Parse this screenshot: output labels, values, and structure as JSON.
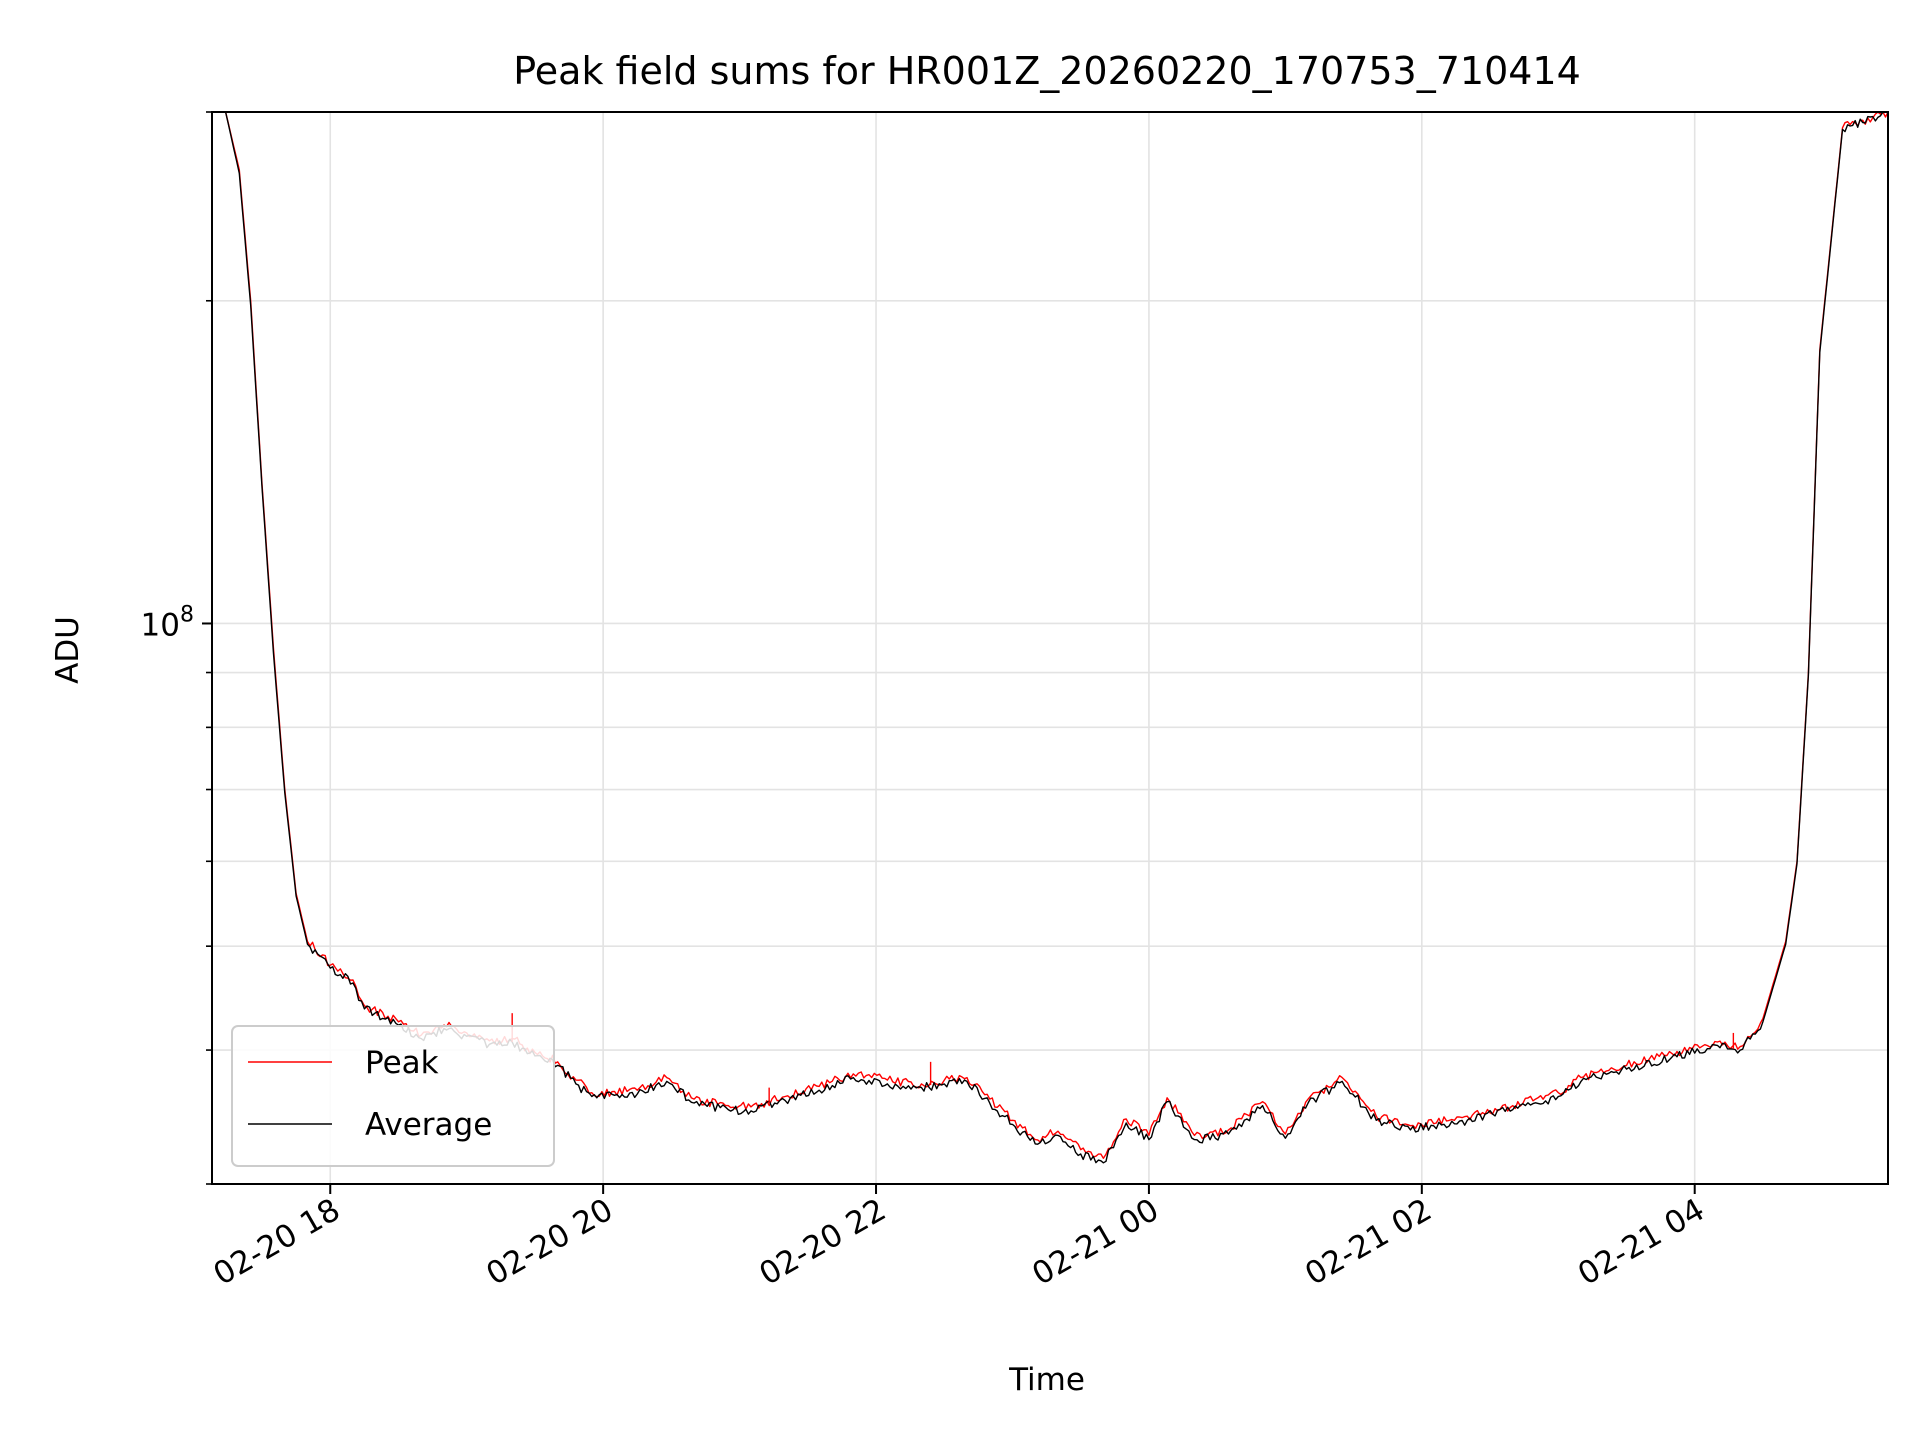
{
  "chart_data": {
    "type": "line",
    "title": "Peak field sums for HR001Z_20260220_170753_710414",
    "xlabel": "Time",
    "ylabel": "ADU",
    "x_scale": "time",
    "y_scale": "log",
    "xlim": [
      "2026-02-20 17:08",
      "2026-02-21 05:25"
    ],
    "ylim": [
      30000000,
      300000000
    ],
    "x_ticks": [
      {
        "value": "2026-02-20 18:00",
        "label": "02-20 18"
      },
      {
        "value": "2026-02-20 20:00",
        "label": "02-20 20"
      },
      {
        "value": "2026-02-20 22:00",
        "label": "02-20 22"
      },
      {
        "value": "2026-02-21 00:00",
        "label": "02-21 00"
      },
      {
        "value": "2026-02-21 02:00",
        "label": "02-21 02"
      },
      {
        "value": "2026-02-21 04:00",
        "label": "02-21 04"
      }
    ],
    "y_major_ticks": [
      {
        "value": 100000000,
        "label_base": "10",
        "label_exp": "8"
      }
    ],
    "y_minor_ticks": [
      30000000,
      40000000,
      50000000,
      60000000,
      70000000,
      80000000,
      90000000,
      200000000,
      300000000
    ],
    "grid": true,
    "legend_position": "lower-left",
    "series": [
      {
        "name": "Peak",
        "color": "#ff0000",
        "points": [
          [
            "2026-02-20 17:14",
            300000000
          ],
          [
            "2026-02-20 17:20",
            265000000
          ],
          [
            "2026-02-20 17:25",
            200000000
          ],
          [
            "2026-02-20 17:30",
            135000000
          ],
          [
            "2026-02-20 17:35",
            95000000
          ],
          [
            "2026-02-20 17:40",
            70000000
          ],
          [
            "2026-02-20 17:45",
            56000000
          ],
          [
            "2026-02-20 17:50",
            50500000
          ],
          [
            "2026-02-20 18:00",
            48000000
          ],
          [
            "2026-02-20 18:10",
            46500000
          ],
          [
            "2026-02-20 18:15",
            44000000
          ],
          [
            "2026-02-20 18:30",
            42500000
          ],
          [
            "2026-02-20 18:40",
            41300000
          ],
          [
            "2026-02-20 18:50",
            42200000
          ],
          [
            "2026-02-20 19:00",
            41500000
          ],
          [
            "2026-02-20 19:10",
            40800000
          ],
          [
            "2026-02-20 19:20",
            41000000
          ],
          [
            "2026-02-20 19:30",
            39800000
          ],
          [
            "2026-02-20 19:40",
            39000000
          ],
          [
            "2026-02-20 19:48",
            37500000
          ],
          [
            "2026-02-20 19:55",
            36500000
          ],
          [
            "2026-02-20 20:05",
            36600000
          ],
          [
            "2026-02-20 20:15",
            36700000
          ],
          [
            "2026-02-20 20:28",
            37700000
          ],
          [
            "2026-02-20 20:40",
            36000000
          ],
          [
            "2026-02-20 20:55",
            35500000
          ],
          [
            "2026-02-20 21:05",
            35400000
          ],
          [
            "2026-02-20 21:20",
            36200000
          ],
          [
            "2026-02-20 21:35",
            37000000
          ],
          [
            "2026-02-20 21:50",
            38000000
          ],
          [
            "2026-02-20 22:05",
            37500000
          ],
          [
            "2026-02-20 22:20",
            37200000
          ],
          [
            "2026-02-20 22:30",
            37500000
          ],
          [
            "2026-02-20 22:40",
            37700000
          ],
          [
            "2026-02-20 22:50",
            36000000
          ],
          [
            "2026-02-20 23:00",
            34400000
          ],
          [
            "2026-02-20 23:10",
            33000000
          ],
          [
            "2026-02-20 23:20",
            33600000
          ],
          [
            "2026-02-20 23:30",
            32300000
          ],
          [
            "2026-02-20 23:40",
            31700000
          ],
          [
            "2026-02-20 23:50",
            34500000
          ],
          [
            "2026-02-21 00:00",
            33300000
          ],
          [
            "2026-02-21 00:08",
            36100000
          ],
          [
            "2026-02-21 00:20",
            33300000
          ],
          [
            "2026-02-21 00:35",
            33700000
          ],
          [
            "2026-02-21 00:50",
            35800000
          ],
          [
            "2026-02-21 01:00",
            33400000
          ],
          [
            "2026-02-21 01:10",
            36000000
          ],
          [
            "2026-02-21 01:25",
            37700000
          ],
          [
            "2026-02-21 01:40",
            34700000
          ],
          [
            "2026-02-21 01:55",
            34000000
          ],
          [
            "2026-02-21 02:20",
            34700000
          ],
          [
            "2026-02-21 02:40",
            35500000
          ],
          [
            "2026-02-21 03:00",
            36500000
          ],
          [
            "2026-02-21 03:10",
            37700000
          ],
          [
            "2026-02-21 03:30",
            38700000
          ],
          [
            "2026-02-21 03:50",
            39700000
          ],
          [
            "2026-02-21 04:10",
            40700000
          ],
          [
            "2026-02-21 04:20",
            40300000
          ],
          [
            "2026-02-21 04:30",
            42800000
          ],
          [
            "2026-02-21 04:40",
            50500000
          ],
          [
            "2026-02-21 04:45",
            60000000
          ],
          [
            "2026-02-21 04:50",
            90000000
          ],
          [
            "2026-02-21 04:55",
            180000000
          ],
          [
            "2026-02-21 05:05",
            290000000
          ],
          [
            "2026-02-21 05:25",
            300000000
          ]
        ]
      },
      {
        "name": "Average",
        "color": "#000000",
        "points": [
          [
            "2026-02-20 17:14",
            300000000
          ],
          [
            "2026-02-20 17:20",
            263000000
          ],
          [
            "2026-02-20 17:25",
            198000000
          ],
          [
            "2026-02-20 17:30",
            134000000
          ],
          [
            "2026-02-20 17:35",
            94000000
          ],
          [
            "2026-02-20 17:40",
            69500000
          ],
          [
            "2026-02-20 17:45",
            55700000
          ],
          [
            "2026-02-20 17:50",
            50200000
          ],
          [
            "2026-02-20 18:00",
            47700000
          ],
          [
            "2026-02-20 18:10",
            46200000
          ],
          [
            "2026-02-20 18:15",
            43700000
          ],
          [
            "2026-02-20 18:30",
            42200000
          ],
          [
            "2026-02-20 18:40",
            41000000
          ],
          [
            "2026-02-20 18:50",
            41900000
          ],
          [
            "2026-02-20 19:00",
            41200000
          ],
          [
            "2026-02-20 19:10",
            40500000
          ],
          [
            "2026-02-20 19:20",
            40700000
          ],
          [
            "2026-02-20 19:30",
            39500000
          ],
          [
            "2026-02-20 19:40",
            38700000
          ],
          [
            "2026-02-20 19:48",
            37200000
          ],
          [
            "2026-02-20 19:55",
            36200000
          ],
          [
            "2026-02-20 20:05",
            36300000
          ],
          [
            "2026-02-20 20:15",
            36400000
          ],
          [
            "2026-02-20 20:28",
            37400000
          ],
          [
            "2026-02-20 20:40",
            35700000
          ],
          [
            "2026-02-20 20:55",
            35200000
          ],
          [
            "2026-02-20 21:05",
            35100000
          ],
          [
            "2026-02-20 21:20",
            35900000
          ],
          [
            "2026-02-20 21:35",
            36700000
          ],
          [
            "2026-02-20 21:50",
            37700000
          ],
          [
            "2026-02-20 22:05",
            37200000
          ],
          [
            "2026-02-20 22:20",
            36900000
          ],
          [
            "2026-02-20 22:30",
            37200000
          ],
          [
            "2026-02-20 22:40",
            37400000
          ],
          [
            "2026-02-20 22:50",
            35700000
          ],
          [
            "2026-02-20 23:00",
            34100000
          ],
          [
            "2026-02-20 23:10",
            32700000
          ],
          [
            "2026-02-20 23:20",
            33300000
          ],
          [
            "2026-02-20 23:30",
            32000000
          ],
          [
            "2026-02-20 23:40",
            31400000
          ],
          [
            "2026-02-20 23:50",
            34200000
          ],
          [
            "2026-02-21 00:00",
            33000000
          ],
          [
            "2026-02-21 00:08",
            35800000
          ],
          [
            "2026-02-21 00:20",
            33000000
          ],
          [
            "2026-02-21 00:35",
            33400000
          ],
          [
            "2026-02-21 00:50",
            35500000
          ],
          [
            "2026-02-21 01:00",
            33100000
          ],
          [
            "2026-02-21 01:10",
            35700000
          ],
          [
            "2026-02-21 01:25",
            37400000
          ],
          [
            "2026-02-21 01:40",
            34400000
          ],
          [
            "2026-02-21 01:55",
            33700000
          ],
          [
            "2026-02-21 02:20",
            34400000
          ],
          [
            "2026-02-21 02:40",
            35200000
          ],
          [
            "2026-02-21 03:00",
            36200000
          ],
          [
            "2026-02-21 03:10",
            37400000
          ],
          [
            "2026-02-21 03:30",
            38400000
          ],
          [
            "2026-02-21 03:50",
            39400000
          ],
          [
            "2026-02-21 04:10",
            40400000
          ],
          [
            "2026-02-21 04:20",
            40000000
          ],
          [
            "2026-02-21 04:30",
            42500000
          ],
          [
            "2026-02-21 04:40",
            50200000
          ],
          [
            "2026-02-21 04:45",
            59700000
          ],
          [
            "2026-02-21 04:50",
            89500000
          ],
          [
            "2026-02-21 04:55",
            179000000
          ],
          [
            "2026-02-21 05:05",
            289000000
          ],
          [
            "2026-02-21 05:25",
            300000000
          ]
        ]
      }
    ],
    "spikes": [
      {
        "series": "Peak",
        "x": "2026-02-20 19:20",
        "base": 40700000,
        "top": 43300000
      },
      {
        "series": "Peak",
        "x": "2026-02-20 21:13",
        "base": 35700000,
        "top": 36900000
      },
      {
        "series": "Peak",
        "x": "2026-02-20 22:24",
        "base": 37100000,
        "top": 39000000
      },
      {
        "series": "Peak",
        "x": "2026-02-21 04:17",
        "base": 40100000,
        "top": 41500000
      }
    ]
  }
}
